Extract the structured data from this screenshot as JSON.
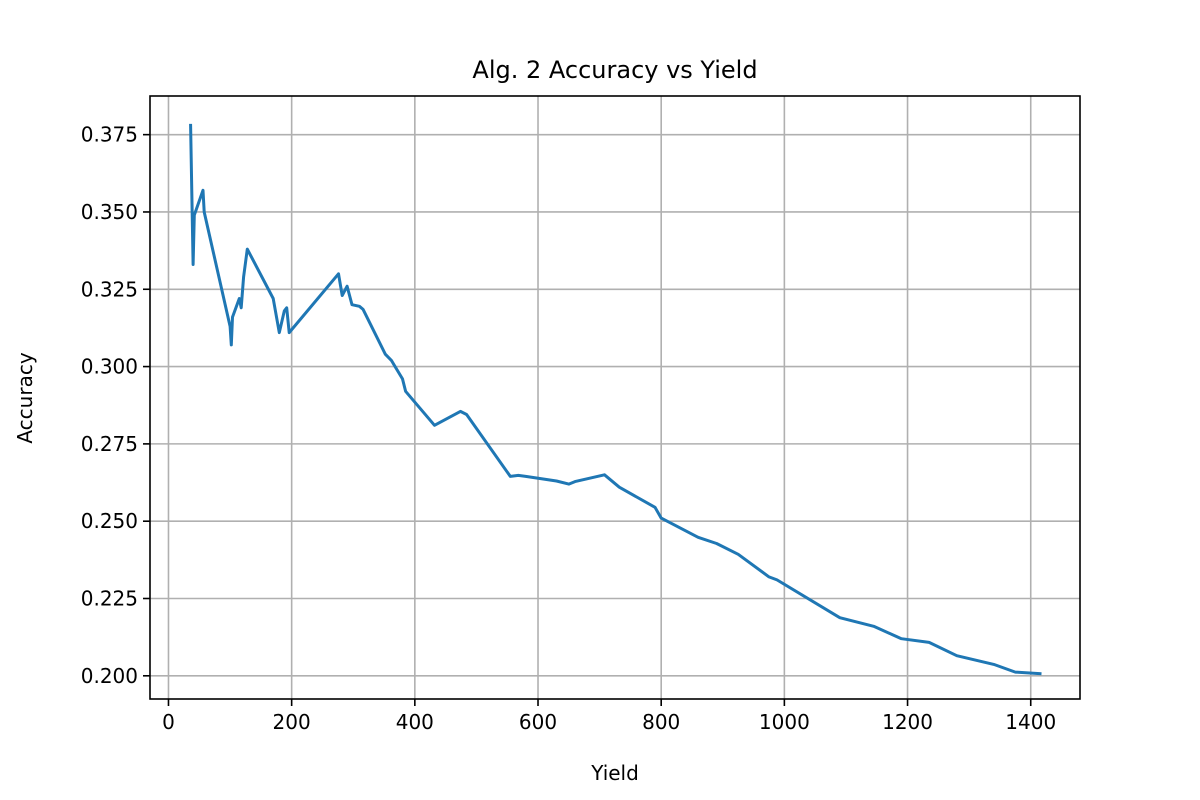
{
  "chart_data": {
    "type": "line",
    "title": "Alg. 2 Accuracy vs Yield",
    "xlabel": "Yield",
    "ylabel": "Accuracy",
    "xlim": [
      -30,
      1480
    ],
    "ylim": [
      0.1925,
      0.3875
    ],
    "xticks": [
      0,
      200,
      400,
      600,
      800,
      1000,
      1200,
      1400
    ],
    "xtick_labels": [
      "0",
      "200",
      "400",
      "600",
      "800",
      "1000",
      "1200",
      "1400"
    ],
    "yticks": [
      0.2,
      0.225,
      0.25,
      0.275,
      0.3,
      0.325,
      0.35,
      0.375
    ],
    "ytick_labels": [
      "0.200",
      "0.225",
      "0.250",
      "0.275",
      "0.300",
      "0.325",
      "0.350",
      "0.375"
    ],
    "grid": true,
    "series": [
      {
        "color": "#1f77b4",
        "x": [
          36,
          40,
          42,
          56,
          58,
          100,
          102,
          104,
          115,
          118,
          122,
          128,
          170,
          180,
          188,
          192,
          196,
          276,
          282,
          290,
          298,
          310,
          316,
          352,
          362,
          368,
          380,
          385,
          432,
          474,
          484,
          555,
          568,
          580,
          630,
          650,
          660,
          708,
          732,
          790,
          800,
          860,
          890,
          925,
          975,
          988,
          1090,
          1145,
          1190,
          1235,
          1280,
          1340,
          1375,
          1415
        ],
        "y": [
          0.378,
          0.333,
          0.349,
          0.357,
          0.35,
          0.313,
          0.307,
          0.316,
          0.322,
          0.319,
          0.329,
          0.338,
          0.322,
          0.311,
          0.318,
          0.319,
          0.311,
          0.33,
          0.323,
          0.326,
          0.32,
          0.3195,
          0.3185,
          0.304,
          0.302,
          0.3,
          0.296,
          0.292,
          0.281,
          0.2855,
          0.2845,
          0.2645,
          0.2648,
          0.2645,
          0.263,
          0.262,
          0.2628,
          0.265,
          0.261,
          0.2545,
          0.251,
          0.2448,
          0.2428,
          0.2393,
          0.232,
          0.231,
          0.2188,
          0.216,
          0.212,
          0.2108,
          0.2065,
          0.2037,
          0.2012,
          0.2007
        ]
      }
    ]
  }
}
